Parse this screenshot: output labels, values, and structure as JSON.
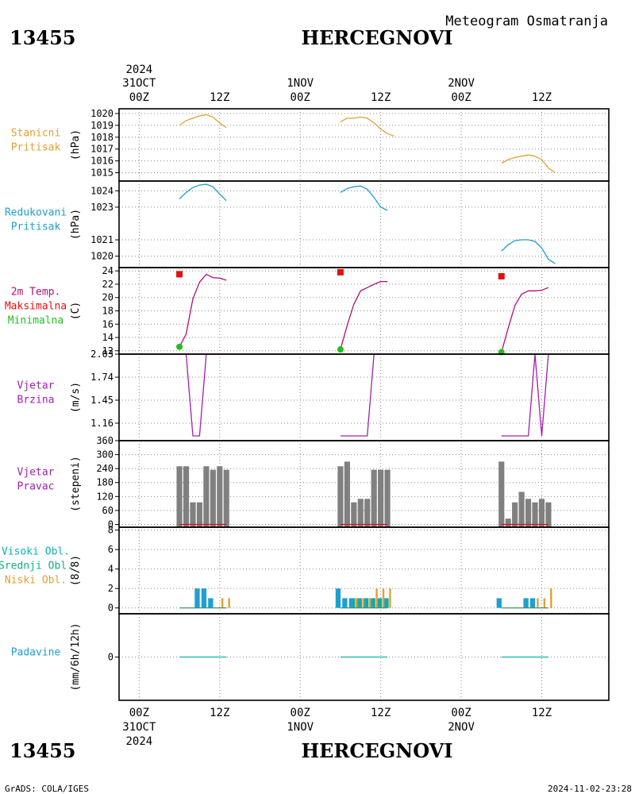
{
  "header": {
    "station_id": "13455",
    "station_name": "HERCEGNOVI",
    "subtitle": "Meteogram Osmatranja"
  },
  "footer": {
    "credit": "GrADS: COLA/IGES",
    "timestamp": "2024-11-02-23:28"
  },
  "time_axis": {
    "top_year": "2024",
    "top_dates": [
      "31OCT",
      "1NOV",
      "2NOV"
    ],
    "bottom_dates": [
      "31OCT",
      "1NOV",
      "2NOV"
    ],
    "bottom_year": "2024",
    "hour_labels": [
      "00Z",
      "12Z"
    ],
    "range_hours": [
      -3,
      70
    ]
  },
  "colors": {
    "orange": "#e0a030",
    "blue": "#1f9fd0",
    "magenta": "#b0107a",
    "red": "#e01010",
    "green": "#20c020",
    "purple": "#a020b0",
    "gray": "#808080",
    "teal": "#10b0b0",
    "seagreen": "#10b080"
  },
  "chart_data": [
    {
      "id": "stanicni",
      "type": "line",
      "labels": [
        {
          "text": "Stanicni",
          "color": "orange"
        },
        {
          "text": "Pritisak",
          "color": "orange"
        }
      ],
      "ylabel": "(hPa)",
      "ylim": [
        1014.3,
        1020.4
      ],
      "yticks": [
        1015,
        1016,
        1017,
        1018,
        1019,
        1020
      ],
      "series": [
        {
          "color": "orange",
          "segments": [
            [
              [
                6,
                1019.0
              ],
              [
                7,
                1019.4
              ],
              [
                8,
                1019.6
              ],
              [
                9,
                1019.8
              ],
              [
                10,
                1019.9
              ],
              [
                11,
                1019.7
              ],
              [
                12,
                1019.2
              ],
              [
                13,
                1018.8
              ]
            ],
            [
              [
                30,
                1019.3
              ],
              [
                31,
                1019.6
              ],
              [
                32,
                1019.6
              ],
              [
                33,
                1019.7
              ],
              [
                34,
                1019.6
              ],
              [
                35,
                1019.2
              ],
              [
                36,
                1018.7
              ],
              [
                37,
                1018.3
              ],
              [
                38,
                1018.1
              ]
            ],
            [
              [
                54,
                1015.8
              ],
              [
                55,
                1016.1
              ],
              [
                56,
                1016.3
              ],
              [
                57,
                1016.4
              ],
              [
                58,
                1016.5
              ],
              [
                59,
                1016.4
              ],
              [
                60,
                1016.1
              ],
              [
                61,
                1015.4
              ],
              [
                62,
                1015.0
              ]
            ]
          ]
        }
      ]
    },
    {
      "id": "redukovani",
      "type": "line",
      "labels": [
        {
          "text": "Redukovani",
          "color": "blue"
        },
        {
          "text": "Pritisak",
          "color": "blue"
        }
      ],
      "ylabel": "(hPa)",
      "ylim": [
        1019.3,
        1024.6
      ],
      "yticks": [
        1020,
        1021,
        1023,
        1024
      ],
      "series": [
        {
          "color": "blue",
          "segments": [
            [
              [
                6,
                1023.5
              ],
              [
                7,
                1023.9
              ],
              [
                8,
                1024.2
              ],
              [
                9,
                1024.35
              ],
              [
                10,
                1024.4
              ],
              [
                11,
                1024.25
              ],
              [
                12,
                1023.8
              ],
              [
                13,
                1023.4
              ]
            ],
            [
              [
                30,
                1023.9
              ],
              [
                31,
                1024.15
              ],
              [
                32,
                1024.25
              ],
              [
                33,
                1024.3
              ],
              [
                34,
                1024.1
              ],
              [
                35,
                1023.6
              ],
              [
                36,
                1023.0
              ],
              [
                37,
                1022.8
              ]
            ],
            [
              [
                54,
                1020.3
              ],
              [
                55,
                1020.7
              ],
              [
                56,
                1020.95
              ],
              [
                57,
                1021.0
              ],
              [
                58,
                1021.0
              ],
              [
                59,
                1020.9
              ],
              [
                60,
                1020.5
              ],
              [
                61,
                1019.8
              ],
              [
                62,
                1019.55
              ]
            ]
          ]
        }
      ]
    },
    {
      "id": "temp",
      "type": "line",
      "labels": [
        {
          "text": "2m Temp.",
          "color": "magenta"
        },
        {
          "text": "Maksimalna",
          "color": "red"
        },
        {
          "text": "Minimalna",
          "color": "green"
        }
      ],
      "ylabel": "(C)",
      "ylim": [
        11.5,
        24.5
      ],
      "yticks": [
        12,
        14,
        16,
        18,
        20,
        22,
        24
      ],
      "series": [
        {
          "color": "magenta",
          "segments": [
            [
              [
                6,
                12.6
              ],
              [
                7,
                14.5
              ],
              [
                8,
                19.8
              ],
              [
                9,
                22.3
              ],
              [
                10,
                23.5
              ],
              [
                11,
                23.0
              ],
              [
                12,
                22.9
              ],
              [
                13,
                22.6
              ]
            ],
            [
              [
                30,
                12.2
              ],
              [
                31,
                15.8
              ],
              [
                32,
                19.0
              ],
              [
                33,
                21.0
              ],
              [
                34,
                21.5
              ],
              [
                35,
                22.0
              ],
              [
                36,
                22.4
              ],
              [
                37,
                22.4
              ]
            ],
            [
              [
                54,
                11.8
              ],
              [
                55,
                15.4
              ],
              [
                56,
                18.8
              ],
              [
                57,
                20.5
              ],
              [
                58,
                21.0
              ],
              [
                59,
                21.0
              ],
              [
                60,
                21.1
              ],
              [
                61,
                21.5
              ]
            ]
          ]
        }
      ],
      "max_points": [
        [
          6,
          23.5
        ],
        [
          30,
          23.8
        ],
        [
          54,
          23.2
        ]
      ],
      "min_points": [
        [
          6,
          12.6
        ],
        [
          30,
          12.2
        ],
        [
          54,
          11.8
        ]
      ]
    },
    {
      "id": "brzina",
      "type": "line",
      "labels": [
        {
          "text": "Vjetar",
          "color": "purple"
        },
        {
          "text": "Brzina",
          "color": "purple"
        }
      ],
      "ylabel": "(m/s)",
      "ylim": [
        0.94,
        2.03
      ],
      "yticks": [
        "1.16",
        "1.45",
        "1.74",
        "2.03"
      ],
      "series": [
        {
          "color": "purple",
          "segments": [
            [
              [
                6,
                2.03
              ],
              [
                7,
                2.03
              ],
              [
                8,
                1.0
              ],
              [
                9,
                1.0
              ],
              [
                10,
                2.03
              ],
              [
                11,
                2.03
              ],
              [
                12,
                2.03
              ],
              [
                13,
                2.03
              ]
            ],
            [
              [
                30,
                1.0
              ],
              [
                31,
                1.0
              ],
              [
                32,
                1.0
              ],
              [
                33,
                1.0
              ],
              [
                34,
                1.0
              ],
              [
                35,
                2.03
              ],
              [
                36,
                2.03
              ],
              [
                37,
                2.03
              ]
            ],
            [
              [
                54,
                1.0
              ],
              [
                55,
                1.0
              ],
              [
                56,
                1.0
              ],
              [
                57,
                1.0
              ],
              [
                58,
                1.0
              ],
              [
                59,
                2.03
              ],
              [
                60,
                1.0
              ],
              [
                61,
                2.03
              ]
            ]
          ]
        }
      ]
    },
    {
      "id": "pravac",
      "type": "bar",
      "labels": [
        {
          "text": "Vjetar",
          "color": "purple"
        },
        {
          "text": "Pravac",
          "color": "purple"
        }
      ],
      "ylabel": "(stepeni)",
      "ylim": [
        -12,
        360
      ],
      "yticks": [
        0,
        60,
        120,
        180,
        240,
        300,
        360
      ],
      "bar_color": "gray",
      "bars": [
        [
          6,
          250
        ],
        [
          7,
          250
        ],
        [
          8,
          95
        ],
        [
          9,
          95
        ],
        [
          10,
          250
        ],
        [
          11,
          235
        ],
        [
          12,
          250
        ],
        [
          13,
          235
        ],
        [
          30,
          250
        ],
        [
          31,
          270
        ],
        [
          32,
          95
        ],
        [
          33,
          110
        ],
        [
          34,
          110
        ],
        [
          35,
          235
        ],
        [
          36,
          235
        ],
        [
          37,
          235
        ],
        [
          54,
          270
        ],
        [
          55,
          25
        ],
        [
          56,
          95
        ],
        [
          57,
          140
        ],
        [
          58,
          110
        ],
        [
          59,
          95
        ],
        [
          60,
          110
        ],
        [
          61,
          95
        ]
      ],
      "zero_lines": [
        [
          6,
          13
        ],
        [
          30,
          37
        ],
        [
          54,
          61
        ]
      ]
    },
    {
      "id": "oblaci",
      "type": "bar",
      "labels": [
        {
          "text": "Visoki Obl.",
          "color": "teal"
        },
        {
          "text": "Srednji Obl.",
          "color": "seagreen"
        },
        {
          "text": "Niski Obl.",
          "color": "orange"
        }
      ],
      "ylabel": "(8/8)",
      "ylim": [
        -0.6,
        8.3
      ],
      "yticks": [
        0,
        2,
        4,
        6,
        8
      ],
      "series": [
        {
          "name": "Visoki Obl.",
          "color": "blue",
          "offset": -0.35,
          "width": 0.75,
          "bars": [
            [
              9,
              2
            ],
            [
              10,
              2
            ],
            [
              11,
              1
            ],
            [
              30,
              2
            ],
            [
              31,
              1
            ],
            [
              32,
              1
            ],
            [
              33,
              1
            ],
            [
              34,
              1
            ],
            [
              35,
              1
            ],
            [
              36,
              1
            ],
            [
              37,
              1
            ],
            [
              54,
              1
            ],
            [
              58,
              1
            ],
            [
              59,
              1
            ]
          ]
        },
        {
          "name": "Srednji Obl.",
          "color": "seagreen",
          "offset": 0.05,
          "width": 0.28,
          "bars": [
            [
              32,
              1
            ],
            [
              33,
              1
            ],
            [
              34,
              1
            ],
            [
              35,
              1
            ],
            [
              36,
              1
            ],
            [
              37,
              1
            ]
          ]
        },
        {
          "name": "Niski Obl.",
          "color": "orange",
          "offset": 0.4,
          "width": 0.28,
          "bars": [
            [
              12,
              1
            ],
            [
              13,
              1
            ],
            [
              32,
              1
            ],
            [
              33,
              1
            ],
            [
              34,
              1
            ],
            [
              35,
              2
            ],
            [
              36,
              2
            ],
            [
              37,
              2
            ],
            [
              59,
              1
            ],
            [
              60,
              1
            ],
            [
              61,
              2
            ]
          ]
        }
      ],
      "zero_lines": [
        [
          6,
          13
        ],
        [
          30,
          37
        ],
        [
          54,
          61
        ]
      ]
    },
    {
      "id": "padavine",
      "type": "line",
      "labels": [
        {
          "text": "Padavine",
          "color": "blue"
        }
      ],
      "ylabel": "(mm/6h/12h)",
      "ylim": [
        -1,
        1
      ],
      "yticks": [
        0
      ],
      "zero_lines": [
        [
          6,
          13
        ],
        [
          30,
          37
        ],
        [
          54,
          61
        ]
      ]
    }
  ]
}
